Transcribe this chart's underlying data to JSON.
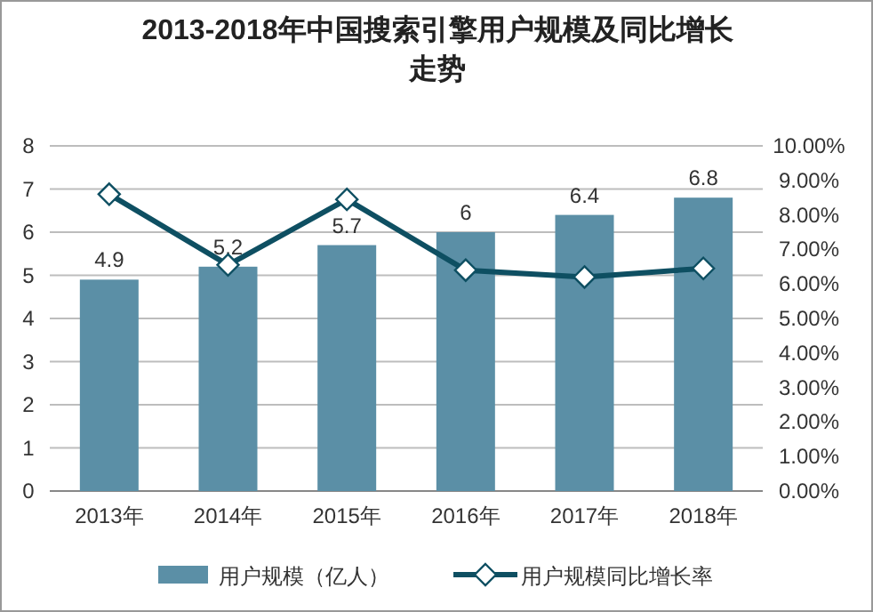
{
  "chart_data": {
    "type": "bar",
    "title": "2013-2018年中国搜索引擎用户规模及同比增长走势",
    "categories": [
      "2013年",
      "2014年",
      "2015年",
      "2016年",
      "2017年",
      "2018年"
    ],
    "series": [
      {
        "name": "用户规模（亿人）",
        "color": "#5b8fa6",
        "values": [
          4.9,
          5.2,
          5.7,
          6,
          6.4,
          6.8
        ],
        "value_labels": [
          "4.9",
          "5.2",
          "5.7",
          "6",
          "6.4",
          "6.8"
        ]
      },
      {
        "name": "用户规模同比增长率",
        "type": "line",
        "axis": "y2",
        "color": "#0e4f62",
        "marker": "diamond",
        "values": [
          8.6,
          6.55,
          8.45,
          6.4,
          6.2,
          6.45
        ]
      }
    ],
    "ylim": [
      0,
      8
    ],
    "yticks": [
      0,
      1,
      2,
      3,
      4,
      5,
      6,
      7,
      8
    ],
    "y2lim": [
      0,
      10
    ],
    "y2ticks": [
      {
        "value": 0,
        "label": "0.00%"
      },
      {
        "value": 1,
        "label": "1.00%"
      },
      {
        "value": 2,
        "label": "2.00%"
      },
      {
        "value": 3,
        "label": "3.00%"
      },
      {
        "value": 4,
        "label": "4.00%"
      },
      {
        "value": 5,
        "label": "5.00%"
      },
      {
        "value": 6,
        "label": "6.00%"
      },
      {
        "value": 7,
        "label": "7.00%"
      },
      {
        "value": 8,
        "label": "8.00%"
      },
      {
        "value": 9,
        "label": "9.00%"
      },
      {
        "value": 10,
        "label": "10.00%"
      }
    ],
    "grid": "y",
    "legend": "bottom"
  }
}
